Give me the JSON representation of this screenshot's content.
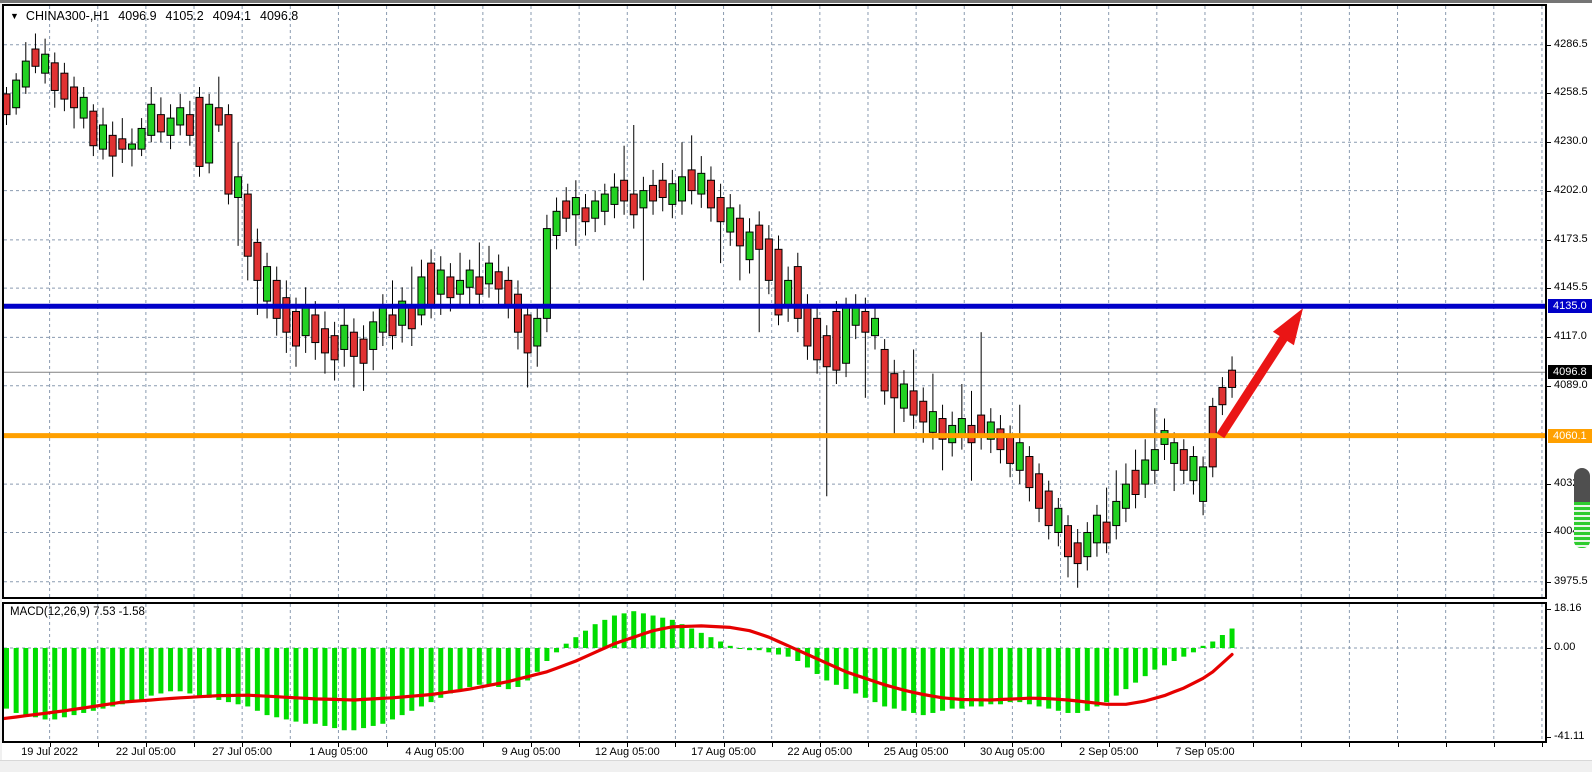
{
  "title_bar": {
    "symbol": "CHINA300-,H1",
    "open": "4096.9",
    "high": "4105.2",
    "low": "4094.1",
    "close": "4096.8"
  },
  "macd_panel": {
    "label": "MACD(12,26,9) 7.53 -1.58"
  },
  "colors": {
    "bull": "#22d122",
    "bear": "#e03232",
    "wick": "#000000",
    "grid": "#8a9bb0",
    "resistance": "#0000c8",
    "support": "#ffa000",
    "last_price_line": "#808080",
    "badge_black": "#000000",
    "arrow": "#ea1515",
    "macd_hist": "#00dd00",
    "macd_signal": "#e60000"
  },
  "price_axis": {
    "labels": [
      {
        "text": "4286.5",
        "price": 4286.5
      },
      {
        "text": "4258.5",
        "price": 4258.5
      },
      {
        "text": "4230.0",
        "price": 4230.0
      },
      {
        "text": "4202.0",
        "price": 4202.0
      },
      {
        "text": "4173.5",
        "price": 4173.5
      },
      {
        "text": "4145.5",
        "price": 4145.5
      },
      {
        "text": "4117.0",
        "price": 4117.0
      },
      {
        "text": "4089.0",
        "price": 4089.0
      },
      {
        "text": "4032.0",
        "price": 4032.0
      },
      {
        "text": "4004.0",
        "price": 4004.0
      },
      {
        "text": "3975.5",
        "price": 3975.5
      }
    ],
    "badges": [
      {
        "text": "4135.0",
        "price": 4135.0,
        "bg": "#0000c8",
        "fg": "#ffffff",
        "name": "resistance-price-badge"
      },
      {
        "text": "4096.8",
        "price": 4096.8,
        "bg": "#000000",
        "fg": "#ffffff",
        "name": "last-price-badge"
      },
      {
        "text": "4060.1",
        "price": 4060.1,
        "bg": "#ffa000",
        "fg": "#ffffff",
        "name": "support-price-badge"
      }
    ]
  },
  "macd_axis": {
    "labels": [
      {
        "text": "18.16",
        "v": 18.16
      },
      {
        "text": "0.00",
        "v": 0
      },
      {
        "text": "-41.11",
        "v": -41.11
      }
    ]
  },
  "time_axis": {
    "labels": [
      "19 Jul 2022",
      "22 Jul 05:00",
      "27 Jul 05:00",
      "1 Aug 05:00",
      "4 Aug 05:00",
      "9 Aug 05:00",
      "12 Aug 05:00",
      "17 Aug 05:00",
      "22 Aug 05:00",
      "25 Aug 05:00",
      "30 Aug 05:00",
      "2 Sep 05:00",
      "7 Sep 05:00"
    ]
  },
  "chart_data": {
    "type": "candlestick",
    "symbol": "CHINA300-",
    "timeframe": "H1",
    "quote": {
      "open": 4096.9,
      "high": 4105.2,
      "low": 4094.1,
      "close": 4096.8
    },
    "ylim": [
      3966,
      4309
    ],
    "grid": "dashed",
    "gridline_prices": [
      4286.5,
      4258.5,
      4230.0,
      4202.0,
      4173.5,
      4145.5,
      4117.0,
      4089.0,
      4060.5,
      4032.0,
      4004.0,
      3975.5
    ],
    "horizontal_lines": [
      {
        "name": "resistance-line",
        "price": 4135.0,
        "color": "#0000c8",
        "width": 5
      },
      {
        "name": "support-line",
        "price": 4060.1,
        "color": "#ffa000",
        "width": 5
      },
      {
        "name": "last-price-line",
        "price": 4096.8,
        "color": "#808080",
        "width": 1
      }
    ],
    "annotation_arrow": {
      "from_price": 4060.1,
      "from_index": 126.8,
      "to_price": 4135.0,
      "color": "#ea1515"
    },
    "candles": [
      [
        4262,
        4240,
        4268,
        4232,
        "r"
      ],
      [
        4258,
        4246,
        4262,
        4240,
        "r"
      ],
      [
        4266,
        4250,
        4270,
        4246,
        "g"
      ],
      [
        4277,
        4262,
        4288,
        4258,
        "g"
      ],
      [
        4284,
        4274,
        4293,
        4270,
        "r"
      ],
      [
        4281,
        4270,
        4290,
        4264,
        "g"
      ],
      [
        4276,
        4260,
        4282,
        4250,
        "r"
      ],
      [
        4270,
        4255,
        4276,
        4248,
        "r"
      ],
      [
        4262,
        4250,
        4268,
        4238,
        "r"
      ],
      [
        4256,
        4244,
        4262,
        4238,
        "g"
      ],
      [
        4248,
        4228,
        4252,
        4222,
        "r"
      ],
      [
        4240,
        4226,
        4250,
        4220,
        "g"
      ],
      [
        4234,
        4222,
        4242,
        4210,
        "r"
      ],
      [
        4232,
        4226,
        4244,
        4218,
        "r"
      ],
      [
        4229,
        4226,
        4238,
        4216,
        "g"
      ],
      [
        4238,
        4226,
        4244,
        4222,
        "g"
      ],
      [
        4252,
        4234,
        4262,
        4230,
        "g"
      ],
      [
        4246,
        4236,
        4256,
        4230,
        "r"
      ],
      [
        4244,
        4234,
        4252,
        4226,
        "g"
      ],
      [
        4250,
        4240,
        4258,
        4234,
        "g"
      ],
      [
        4246,
        4234,
        4254,
        4228,
        "r"
      ],
      [
        4256,
        4216,
        4262,
        4210,
        "r"
      ],
      [
        4252,
        4218,
        4258,
        4212,
        "g"
      ],
      [
        4250,
        4240,
        4268,
        4236,
        "r"
      ],
      [
        4246,
        4200,
        4252,
        4194,
        "r"
      ],
      [
        4210,
        4198,
        4230,
        4170,
        "g"
      ],
      [
        4200,
        4164,
        4206,
        4150,
        "r"
      ],
      [
        4172,
        4150,
        4180,
        4130,
        "r"
      ],
      [
        4158,
        4138,
        4166,
        4128,
        "g"
      ],
      [
        4150,
        4128,
        4158,
        4118,
        "r"
      ],
      [
        4140,
        4120,
        4150,
        4108,
        "r"
      ],
      [
        4132,
        4112,
        4140,
        4100,
        "r"
      ],
      [
        4136,
        4118,
        4146,
        4108,
        "g"
      ],
      [
        4130,
        4114,
        4138,
        4104,
        "r"
      ],
      [
        4122,
        4108,
        4132,
        4096,
        "r"
      ],
      [
        4118,
        4104,
        4126,
        4092,
        "r"
      ],
      [
        4124,
        4110,
        4134,
        4100,
        "g"
      ],
      [
        4120,
        4106,
        4128,
        4088,
        "r"
      ],
      [
        4116,
        4102,
        4124,
        4086,
        "r"
      ],
      [
        4126,
        4110,
        4132,
        4098,
        "g"
      ],
      [
        4134,
        4120,
        4142,
        4112,
        "g"
      ],
      [
        4130,
        4118,
        4150,
        4110,
        "r"
      ],
      [
        4138,
        4124,
        4146,
        4114,
        "g"
      ],
      [
        4134,
        4122,
        4158,
        4112,
        "r"
      ],
      [
        4152,
        4130,
        4162,
        4124,
        "g"
      ],
      [
        4160,
        4136,
        4168,
        4128,
        "r"
      ],
      [
        4156,
        4142,
        4164,
        4130,
        "g"
      ],
      [
        4152,
        4140,
        4160,
        4132,
        "r"
      ],
      [
        4150,
        4142,
        4166,
        4134,
        "g"
      ],
      [
        4156,
        4146,
        4162,
        4136,
        "g"
      ],
      [
        4152,
        4142,
        4172,
        4136,
        "r"
      ],
      [
        4160,
        4148,
        4170,
        4140,
        "g"
      ],
      [
        4155,
        4145,
        4165,
        4135,
        "r"
      ],
      [
        4150,
        4136,
        4158,
        4128,
        "r"
      ],
      [
        4142,
        4120,
        4150,
        4110,
        "r"
      ],
      [
        4130,
        4108,
        4136,
        4088,
        "r"
      ],
      [
        4128,
        4112,
        4134,
        4100,
        "g"
      ],
      [
        4180,
        4128,
        4188,
        4120,
        "g"
      ],
      [
        4190,
        4176,
        4198,
        4168,
        "g"
      ],
      [
        4196,
        4186,
        4204,
        4178,
        "r"
      ],
      [
        4198,
        4188,
        4208,
        4170,
        "g"
      ],
      [
        4192,
        4184,
        4200,
        4176,
        "r"
      ],
      [
        4196,
        4186,
        4202,
        4178,
        "g"
      ],
      [
        4200,
        4190,
        4206,
        4182,
        "g"
      ],
      [
        4204,
        4194,
        4212,
        4186,
        "g"
      ],
      [
        4208,
        4196,
        4228,
        4188,
        "r"
      ],
      [
        4200,
        4188,
        4240,
        4180,
        "r"
      ],
      [
        4202,
        4192,
        4210,
        4150,
        "g"
      ],
      [
        4205,
        4196,
        4214,
        4188,
        "r"
      ],
      [
        4208,
        4198,
        4218,
        4190,
        "r"
      ],
      [
        4206,
        4194,
        4214,
        4186,
        "g"
      ],
      [
        4210,
        4196,
        4230,
        4188,
        "g"
      ],
      [
        4214,
        4202,
        4234,
        4194,
        "r"
      ],
      [
        4212,
        4200,
        4222,
        4192,
        "g"
      ],
      [
        4208,
        4192,
        4216,
        4184,
        "r"
      ],
      [
        4198,
        4184,
        4206,
        4160,
        "r"
      ],
      [
        4192,
        4178,
        4200,
        4170,
        "g"
      ],
      [
        4186,
        4170,
        4194,
        4150,
        "r"
      ],
      [
        4178,
        4162,
        4186,
        4154,
        "g"
      ],
      [
        4182,
        4168,
        4190,
        4120,
        "r"
      ],
      [
        4174,
        4150,
        4182,
        4142,
        "r"
      ],
      [
        4168,
        4130,
        4176,
        4124,
        "r"
      ],
      [
        4150,
        4134,
        4158,
        4126,
        "g"
      ],
      [
        4158,
        4128,
        4166,
        4120,
        "r"
      ],
      [
        4136,
        4112,
        4142,
        4104,
        "r"
      ],
      [
        4128,
        4104,
        4134,
        4096,
        "r"
      ],
      [
        4118,
        4100,
        4124,
        4025,
        "r"
      ],
      [
        4132,
        4098,
        4138,
        4090,
        "r"
      ],
      [
        4134,
        4102,
        4140,
        4094,
        "g"
      ],
      [
        4136,
        4124,
        4142,
        4116,
        "g"
      ],
      [
        4132,
        4120,
        4140,
        4082,
        "r"
      ],
      [
        4128,
        4118,
        4136,
        4110,
        "g"
      ],
      [
        4110,
        4086,
        4116,
        4078,
        "r"
      ],
      [
        4096,
        4082,
        4104,
        4060,
        "r"
      ],
      [
        4090,
        4076,
        4098,
        4068,
        "g"
      ],
      [
        4086,
        4072,
        4110,
        4064,
        "r"
      ],
      [
        4080,
        4068,
        4088,
        4056,
        "r"
      ],
      [
        4074,
        4062,
        4096,
        4052,
        "g"
      ],
      [
        4070,
        4058,
        4078,
        4040,
        "r"
      ],
      [
        4066,
        4056,
        4074,
        4048,
        "g"
      ],
      [
        4070,
        4060,
        4090,
        4052,
        "g"
      ],
      [
        4066,
        4056,
        4086,
        4034,
        "r"
      ],
      [
        4072,
        4060,
        4120,
        4052,
        "r"
      ],
      [
        4068,
        4058,
        4076,
        4050,
        "g"
      ],
      [
        4064,
        4052,
        4072,
        4044,
        "r"
      ],
      [
        4060,
        4044,
        4066,
        4036,
        "r"
      ],
      [
        4056,
        4040,
        4078,
        4032,
        "g"
      ],
      [
        4048,
        4030,
        4054,
        4022,
        "r"
      ],
      [
        4038,
        4018,
        4044,
        4010,
        "r"
      ],
      [
        4028,
        4008,
        4034,
        4000,
        "r"
      ],
      [
        4018,
        4004,
        4024,
        3996,
        "g"
      ],
      [
        4008,
        3990,
        4014,
        3978,
        "r"
      ],
      [
        3998,
        3986,
        4006,
        3972,
        "r"
      ],
      [
        4004,
        3990,
        4010,
        3982,
        "g"
      ],
      [
        4014,
        3998,
        4020,
        3990,
        "g"
      ],
      [
        4010,
        3998,
        4030,
        3992,
        "r"
      ],
      [
        4022,
        4008,
        4040,
        4000,
        "g"
      ],
      [
        4032,
        4018,
        4044,
        4010,
        "g"
      ],
      [
        4040,
        4026,
        4052,
        4018,
        "r"
      ],
      [
        4046,
        4032,
        4058,
        4024,
        "g"
      ],
      [
        4052,
        4040,
        4076,
        4032,
        "g"
      ],
      [
        4063,
        4055,
        4070,
        4046,
        "g"
      ],
      [
        4056,
        4044,
        4062,
        4028,
        "g"
      ],
      [
        4052,
        4040,
        4058,
        4032,
        "r"
      ],
      [
        4048,
        4034,
        4054,
        4026,
        "g"
      ],
      [
        4042,
        4022,
        4048,
        4014,
        "g"
      ],
      [
        4077,
        4042,
        4082,
        4036,
        "r"
      ],
      [
        4088,
        4078,
        4094,
        4072,
        "r"
      ],
      [
        4098,
        4088,
        4106,
        4082,
        "r"
      ]
    ],
    "macd": {
      "params": "12,26,9",
      "macd_value": 7.53,
      "signal_value": -1.58,
      "hist": [
        -27,
        -28,
        -30,
        -31,
        -32,
        -33,
        -33,
        -32,
        -31,
        -30,
        -29,
        -28,
        -27,
        -26,
        -25,
        -24,
        -22,
        -21,
        -20,
        -20,
        -21,
        -22,
        -23,
        -24,
        -25,
        -26,
        -27,
        -29,
        -31,
        -32,
        -33,
        -34,
        -35,
        -35,
        -36,
        -37,
        -38,
        -38,
        -37,
        -36,
        -35,
        -33,
        -31,
        -29,
        -27,
        -25,
        -23,
        -21,
        -19,
        -18,
        -17,
        -17,
        -18,
        -19,
        -18,
        -15,
        -11,
        -6,
        -2,
        2,
        5,
        8,
        11,
        13,
        15,
        16,
        17,
        16,
        15,
        14,
        13,
        11,
        9,
        7,
        5,
        3,
        1,
        0,
        -1,
        -1,
        -2,
        -3,
        -4,
        -6,
        -9,
        -12,
        -15,
        -17,
        -19,
        -21,
        -23,
        -25,
        -27,
        -28,
        -29,
        -30,
        -31,
        -30,
        -29,
        -28,
        -28,
        -27,
        -27,
        -26,
        -26,
        -25,
        -25,
        -26,
        -27,
        -28,
        -29,
        -30,
        -30,
        -29,
        -27,
        -25,
        -22,
        -19,
        -16,
        -13,
        -10,
        -8,
        -6,
        -4,
        -2,
        1,
        3,
        6,
        9
      ],
      "signal_keypoints": [
        [
          0,
          -33
        ],
        [
          7,
          -29
        ],
        [
          13,
          -25
        ],
        [
          19,
          -23
        ],
        [
          23,
          -22
        ],
        [
          26,
          -21.8
        ],
        [
          29,
          -22.5
        ],
        [
          33,
          -23.5
        ],
        [
          37,
          -24
        ],
        [
          41,
          -23
        ],
        [
          45,
          -21.5
        ],
        [
          49,
          -19
        ],
        [
          53,
          -15.5
        ],
        [
          57,
          -11
        ],
        [
          60,
          -6
        ],
        [
          62,
          -2
        ],
        [
          64,
          2
        ],
        [
          66,
          5
        ],
        [
          68,
          8
        ],
        [
          70,
          9.8
        ],
        [
          73,
          10.2
        ],
        [
          76,
          9.5
        ],
        [
          78,
          8
        ],
        [
          80,
          5
        ],
        [
          82,
          1
        ],
        [
          84,
          -3
        ],
        [
          86,
          -7
        ],
        [
          88,
          -11
        ],
        [
          90,
          -14
        ],
        [
          92,
          -17
        ],
        [
          94,
          -19.5
        ],
        [
          96,
          -21.5
        ],
        [
          98,
          -23
        ],
        [
          100,
          -23.8
        ],
        [
          103,
          -24
        ],
        [
          105,
          -23.6
        ],
        [
          107,
          -23.2
        ],
        [
          109,
          -23.4
        ],
        [
          111,
          -24
        ],
        [
          113,
          -25
        ],
        [
          115,
          -26
        ],
        [
          117,
          -26
        ],
        [
          119,
          -24.5
        ],
        [
          121,
          -22
        ],
        [
          123,
          -18.5
        ],
        [
          125,
          -14
        ],
        [
          126,
          -11
        ],
        [
          127,
          -7
        ],
        [
          128,
          -3
        ]
      ],
      "ylim": [
        -41.11,
        18.16
      ]
    }
  }
}
